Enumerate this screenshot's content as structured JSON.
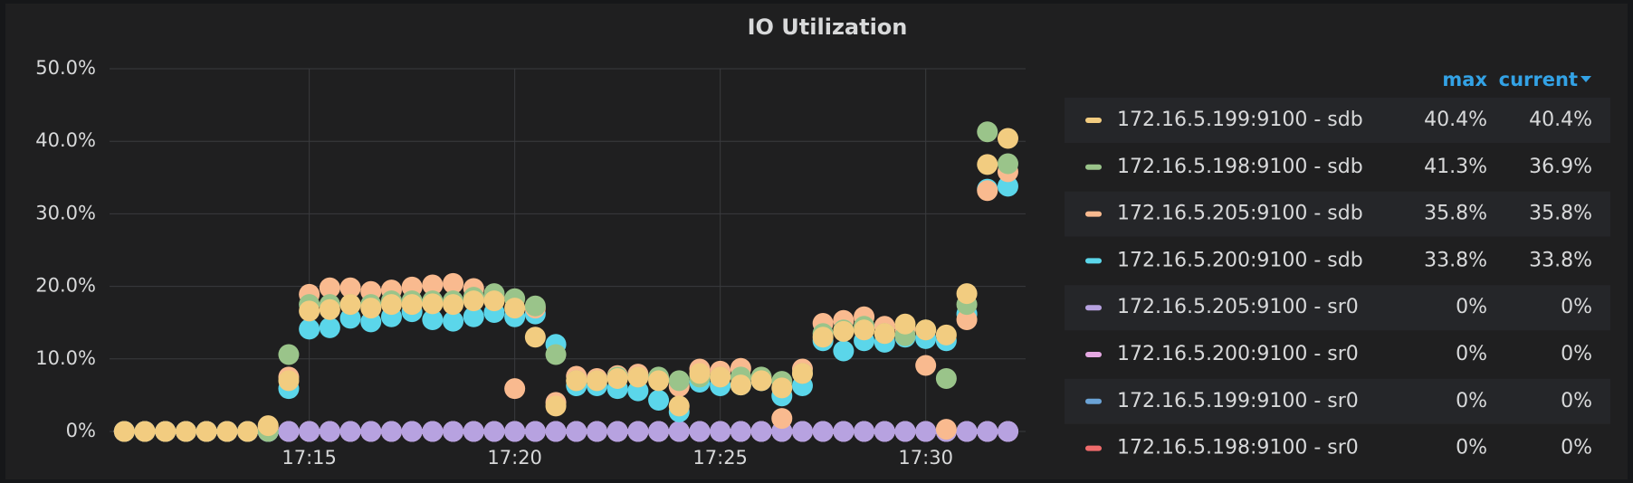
{
  "chart_data": {
    "type": "scatter",
    "title": "IO Utilization",
    "x": [
      1030.5,
      1031,
      1031.5,
      1032,
      1032.5,
      1033,
      1033.5,
      1034,
      1034.5,
      1035,
      1035.5,
      1036,
      1036.5,
      1037,
      1037.5,
      1038,
      1038.5,
      1039,
      1039.5,
      1040,
      1040.5,
      1041,
      1041.5,
      1042,
      1042.5,
      1043,
      1043.5,
      1044,
      1044.5,
      1045,
      1045.5,
      1046,
      1046.5,
      1047,
      1047.5,
      1048,
      1048.5,
      1049,
      1049.5,
      1050,
      1050.5,
      1051,
      1051.5,
      1052
    ],
    "xlim": [
      1030.14,
      1052.43
    ],
    "xticks": [
      {
        "value": 1035,
        "label": "17:15"
      },
      {
        "value": 1040,
        "label": "17:20"
      },
      {
        "value": 1045,
        "label": "17:25"
      },
      {
        "value": 1050,
        "label": "17:30"
      }
    ],
    "ylim": [
      0,
      50
    ],
    "yticks": [
      {
        "value": 0,
        "label": "0%"
      },
      {
        "value": 10,
        "label": "10.0%"
      },
      {
        "value": 20,
        "label": "20.0%"
      },
      {
        "value": 30,
        "label": "30.0%"
      },
      {
        "value": 40,
        "label": "40.0%"
      },
      {
        "value": 50,
        "label": "50.0%"
      }
    ],
    "grid": true,
    "legend_columns": [
      "max",
      "current"
    ],
    "series": [
      {
        "name": "172.16.5.199:9100 - sdb",
        "color": "#f2cc80",
        "max": {
          "value": 40.4,
          "label": "40.4%"
        },
        "current": {
          "value": 40.4,
          "label": "40.4%"
        },
        "values": [
          0,
          0,
          0,
          0,
          0,
          0,
          0,
          0.8,
          7,
          16.6,
          16.8,
          17.5,
          17,
          17.5,
          17.5,
          17.6,
          17.5,
          18,
          18,
          17,
          13,
          3.5,
          7,
          7,
          7.3,
          7.5,
          7,
          3.5,
          8,
          7.5,
          6.4,
          7,
          6,
          8,
          13,
          13.8,
          14,
          13.5,
          14.8,
          14,
          13.3,
          19,
          36.8,
          40.4
        ]
      },
      {
        "name": "172.16.5.198:9100 - sdb",
        "color": "#9ac48a",
        "max": {
          "value": 41.3,
          "label": "41.3%"
        },
        "current": {
          "value": 36.9,
          "label": "36.9%"
        },
        "values": [
          0,
          0,
          0,
          0,
          0,
          0,
          0,
          0,
          10.6,
          17.5,
          17.5,
          17.5,
          17.5,
          18,
          18,
          18,
          18,
          18.5,
          19,
          18.3,
          17.3,
          10.6,
          7,
          7,
          7.5,
          7.5,
          7.5,
          7,
          7.5,
          7.5,
          7.5,
          7.5,
          6.9,
          8,
          13.5,
          14,
          14.5,
          13.5,
          13.2,
          14,
          7.3,
          17.5,
          41.3,
          36.9
        ]
      },
      {
        "name": "172.16.5.205:9100 - sdb",
        "color": "#f9ba8f",
        "max": {
          "value": 35.8,
          "label": "35.8%"
        },
        "current": {
          "value": 35.8,
          "label": "35.8%"
        },
        "values": [
          0,
          0,
          0,
          0,
          0,
          0,
          0,
          0.5,
          7.5,
          18.9,
          19.8,
          19.8,
          19.3,
          19.5,
          19.9,
          20.2,
          20.4,
          19.7,
          18.5,
          5.9,
          17,
          4,
          7.6,
          7.3,
          7.7,
          7.9,
          7.3,
          6.2,
          8.6,
          8.3,
          8.7,
          7.3,
          1.8,
          8.6,
          14.9,
          15.3,
          15.8,
          14.5,
          14.2,
          9.1,
          0.3,
          15.4,
          33.2,
          35.8
        ]
      },
      {
        "name": "172.16.5.200:9100 - sdb",
        "color": "#5bd6ea",
        "max": {
          "value": 33.8,
          "label": "33.8%"
        },
        "current": {
          "value": 33.8,
          "label": "33.8%"
        },
        "values": [
          0,
          0,
          0,
          0,
          0,
          0,
          0,
          0,
          5.9,
          14.1,
          14.3,
          15.6,
          15.1,
          15.8,
          16.5,
          15.4,
          15.2,
          15.8,
          16.4,
          15.8,
          16.2,
          12,
          6.3,
          6.3,
          5.9,
          5.6,
          4.3,
          2.7,
          6.8,
          6.3,
          6.4,
          7,
          4.9,
          6.3,
          12.5,
          11.1,
          12.5,
          12.3,
          13,
          12.8,
          12.5,
          16.2,
          33.4,
          33.8
        ]
      },
      {
        "name": "172.16.5.205:9100 - sr0",
        "color": "#b7a2e0",
        "max": {
          "value": 0,
          "label": "0%"
        },
        "current": {
          "value": 0,
          "label": "0%"
        },
        "values": [
          0,
          0,
          0,
          0,
          0,
          0,
          0,
          0,
          0,
          0,
          0,
          0,
          0,
          0,
          0,
          0,
          0,
          0,
          0,
          0,
          0,
          0,
          0,
          0,
          0,
          0,
          0,
          0,
          0,
          0,
          0,
          0,
          0,
          0,
          0,
          0,
          0,
          0,
          0,
          0,
          0,
          0,
          0,
          0
        ]
      },
      {
        "name": "172.16.5.200:9100 - sr0",
        "color": "#e5a8e2",
        "max": {
          "value": 0,
          "label": "0%"
        },
        "current": {
          "value": 0,
          "label": "0%"
        },
        "values": [
          0,
          0,
          0,
          0,
          0,
          0,
          0,
          0,
          0,
          0,
          0,
          0,
          0,
          0,
          0,
          0,
          0,
          0,
          0,
          0,
          0,
          0,
          0,
          0,
          0,
          0,
          0,
          0,
          0,
          0,
          0,
          0,
          0,
          0,
          0,
          0,
          0,
          0,
          0,
          0,
          0,
          0,
          0,
          0
        ]
      },
      {
        "name": "172.16.5.199:9100 - sr0",
        "color": "#6ba3d6",
        "max": {
          "value": 0,
          "label": "0%"
        },
        "current": {
          "value": 0,
          "label": "0%"
        },
        "values": [
          0,
          0,
          0,
          0,
          0,
          0,
          0,
          0,
          0,
          0,
          0,
          0,
          0,
          0,
          0,
          0,
          0,
          0,
          0,
          0,
          0,
          0,
          0,
          0,
          0,
          0,
          0,
          0,
          0,
          0,
          0,
          0,
          0,
          0,
          0,
          0,
          0,
          0,
          0,
          0,
          0,
          0,
          0,
          0
        ]
      },
      {
        "name": "172.16.5.198:9100 - sr0",
        "color": "#ef6b6b",
        "max": {
          "value": 0,
          "label": "0%"
        },
        "current": {
          "value": 0,
          "label": "0%"
        },
        "values": [
          0,
          0,
          0,
          0,
          0,
          0,
          0,
          0,
          0,
          0,
          0,
          0,
          0,
          0,
          0,
          0,
          0,
          0,
          0,
          0,
          0,
          0,
          0,
          0,
          0,
          0,
          0,
          0,
          0,
          0,
          0,
          0,
          0,
          0,
          0,
          0,
          0,
          0,
          0,
          0,
          0,
          0,
          0,
          0
        ]
      }
    ]
  }
}
